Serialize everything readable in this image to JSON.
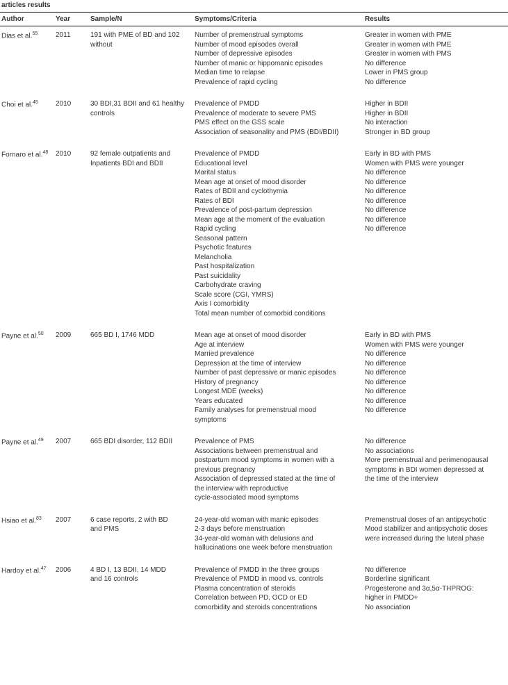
{
  "partial_title": "articles results",
  "headers": {
    "author": "Author",
    "year": "Year",
    "sample": "Sample/N",
    "symptoms": "Symptoms/Criteria",
    "results": "Results"
  },
  "rows": [
    {
      "author": "Dias et al.",
      "ref": "55",
      "year": "2011",
      "sample": [
        "191 with PME of BD and 102",
        "without"
      ],
      "symptoms": [
        "Number of premenstrual symptoms",
        "Number of mood episodes overall",
        "Number of depressive episodes",
        "Number of manic or hippomanic episodes",
        "Median time to relapse",
        "Prevalence of rapid cycling"
      ],
      "results": [
        "Greater in women with PME",
        "Greater in women with PME",
        "Greater in women with PMS",
        "No difference",
        "Lower in PMS group",
        "No difference"
      ]
    },
    {
      "author": "Choi et al.",
      "ref": "45",
      "year": "2010",
      "sample": [
        "30 BDI,31 BDII and 61 healthy",
        "controls"
      ],
      "symptoms": [
        "Prevalence of PMDD",
        "Prevalence of moderate to severe PMS",
        "PMS effect on the GSS scale",
        "Association of seasonality and PMS (BDI/BDII)"
      ],
      "results": [
        "Higher in BDII",
        "Higher in BDII",
        "No interaction",
        "Stronger in BD group"
      ]
    },
    {
      "author": "Fornaro et al.",
      "ref": "48",
      "year": "2010",
      "sample": [
        "92 female outpatients and",
        "Inpatients BDI and BDII"
      ],
      "symptoms": [
        "Prevalence of PMDD",
        "Educational level",
        "Marital status",
        "Mean age at onset of mood disorder",
        "Rates of BDII and cyclothymia",
        "Rates of BDI",
        "Prevalence of post-partum depression",
        "Mean age at the moment of the evaluation",
        "Rapid cycling",
        "Seasonal pattern",
        "Psychotic features",
        "Melancholia",
        "Past hospitalization",
        "Past suicidality",
        "Carbohydrate craving",
        "Scale score (CGI, YMRS)",
        "Axis I comorbidity",
        "Total mean number of comorbid conditions"
      ],
      "results": [
        "Early in BD with PMS",
        "Women with PMS were younger",
        "No difference",
        "No difference",
        "No difference",
        "No difference",
        "No difference",
        "No difference",
        "No difference"
      ]
    },
    {
      "author": "Payne et al.",
      "ref": "50",
      "year": "2009",
      "sample": [
        "665 BD I, 1746 MDD"
      ],
      "symptoms": [
        "Mean age at onset of mood disorder",
        "Age at interview",
        "Married prevalence",
        "Depression at the time of interview",
        "Number of past depressive or manic episodes",
        "History of pregnancy",
        "Longest MDE (weeks)",
        "Years educated",
        "Family analyses for premenstrual mood",
        "symptoms"
      ],
      "results": [
        "Early in BD with PMS",
        "Women with PMS were younger",
        "No difference",
        "No difference",
        "No difference",
        "No difference",
        "No difference",
        "No difference",
        "No difference"
      ]
    },
    {
      "author": "Payne et al.",
      "ref": "49",
      "year": "2007",
      "sample": [
        "665 BDI disorder, 112 BDII"
      ],
      "symptoms": [
        "Prevalence of PMS",
        "Associations between premenstrual and",
        "postpartum mood symptoms in women with a",
        "previous pregnancy",
        "Association of depressed stated at the time of",
        "the interview with reproductive",
        "cycle-associated mood symptoms"
      ],
      "results": [
        "No difference",
        "No associations",
        "More premenstrual and perimenopausal",
        "symptoms in BDI women depressed at",
        "the time of the interview"
      ]
    },
    {
      "author": "Hsiao et al.",
      "ref": "83",
      "year": "2007",
      "sample": [
        "6 case reports, 2 with BD",
        "and PMS"
      ],
      "symptoms": [
        "24-year-old woman with manic episodes",
        "2-3 days before menstruation",
        "34-year-old woman with delusions and",
        "hallucinations one week before menstruation"
      ],
      "results": [
        "Premenstrual doses of an antipsychotic",
        "Mood stabilizer and antipsychotic doses",
        "were increased during the luteal phase"
      ]
    },
    {
      "author": "Hardoy et al.",
      "ref": "47",
      "year": "2006",
      "sample": [
        "4 BD I, 13 BDII, 14 MDD",
        "and 16 controls"
      ],
      "symptoms": [
        "Prevalence of PMDD in the three groups",
        "Prevalence of PMDD in mood vs. controls",
        "Plasma concentration of steroids",
        "Correlation between PD, OCD or ED",
        "comorbidity and steroids concentrations"
      ],
      "results": [
        "No difference",
        "Borderline significant",
        "Progesterone and 3α,5α-THPROG:",
        "higher in PMDD+",
        "No association"
      ]
    }
  ]
}
